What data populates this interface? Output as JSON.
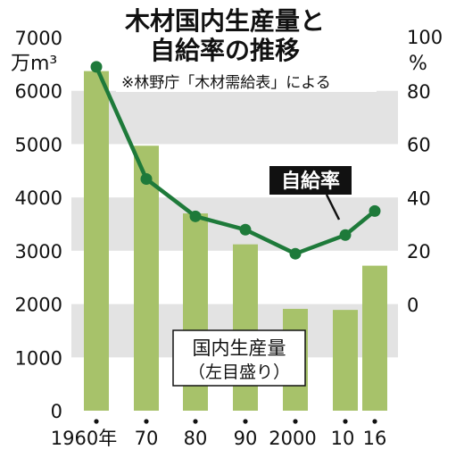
{
  "chart_data": {
    "type": "bar",
    "title": "木材国内生産量と自給率の推移",
    "title_lines": [
      "木材国内生産量と",
      "自給率の推移"
    ],
    "source": "※林野庁「木材需給表」による",
    "x": [
      1960,
      1970,
      1980,
      1990,
      2000,
      2010,
      2016
    ],
    "x_tick_labels": [
      "1960年",
      "70",
      "80",
      "90",
      "2000",
      "10",
      "16"
    ],
    "series": [
      {
        "name": "国内生産量",
        "name_note": "（左目盛り）",
        "axis": "left",
        "type": "bar",
        "values": [
          6370,
          4970,
          3700,
          3120,
          1910,
          1890,
          2720
        ],
        "color": "#a7c26a"
      },
      {
        "name": "自給率",
        "axis": "right",
        "type": "line",
        "values": [
          89,
          47,
          33,
          28,
          19,
          26,
          35
        ],
        "color": "#1e7a3a"
      }
    ],
    "left_axis": {
      "unit": "万m³",
      "ylim": [
        0,
        7000
      ],
      "ticks": [
        0,
        1000,
        2000,
        3000,
        4000,
        5000,
        6000,
        7000
      ]
    },
    "right_axis": {
      "unit": "%",
      "ylim": [
        0,
        100
      ],
      "ticks": [
        0,
        20,
        40,
        60,
        80,
        100
      ]
    },
    "band_color": "#e3e3e3",
    "label_box_color": "#111111"
  }
}
